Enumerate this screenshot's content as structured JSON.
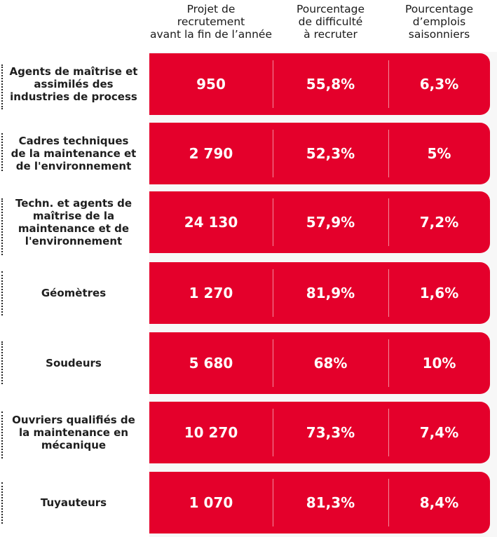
{
  "colors": {
    "accent": "#e4002b",
    "band": "#f7f7f7",
    "text": "#1e1e1e"
  },
  "headers": [
    [
      "Projet de",
      "recrutement",
      "avant la fin de l’année"
    ],
    [
      "Pourcentage",
      "de difficulté",
      "à recruter"
    ],
    [
      "Pourcentage",
      "d’emplois",
      "saisonniers"
    ]
  ],
  "chart_data": {
    "type": "table",
    "columns": [
      "Projet de recrutement avant la fin de l’année",
      "Pourcentage de difficulté à recruter",
      "Pourcentage d’emplois saisonniers"
    ],
    "rows": [
      {
        "label": [
          "Agents de maîtrise et",
          "assimilés des",
          "industries de process"
        ],
        "projets": "950",
        "difficulte": "55,8%",
        "saisonniers": "6,3%"
      },
      {
        "label": [
          "Cadres techniques",
          "de la maintenance et",
          "de l'environnement"
        ],
        "projets": "2 790",
        "difficulte": "52,3%",
        "saisonniers": "5%"
      },
      {
        "label": [
          "Techn. et agents de",
          "maîtrise de la",
          "maintenance et de",
          "l'environnement"
        ],
        "projets": "24 130",
        "difficulte": "57,9%",
        "saisonniers": "7,2%"
      },
      {
        "label": [
          "Géomètres"
        ],
        "projets": "1 270",
        "difficulte": "81,9%",
        "saisonniers": "1,6%"
      },
      {
        "label": [
          "Soudeurs"
        ],
        "projets": "5 680",
        "difficulte": "68%",
        "saisonniers": "10%"
      },
      {
        "label": [
          "Ouvriers qualifiés de",
          "la maintenance en",
          "mécanique"
        ],
        "projets": "10 270",
        "difficulte": "73,3%",
        "saisonniers": "7,4%"
      },
      {
        "label": [
          "Tuyauteurs"
        ],
        "projets": "1 070",
        "difficulte": "81,3%",
        "saisonniers": "8,4%"
      }
    ]
  }
}
